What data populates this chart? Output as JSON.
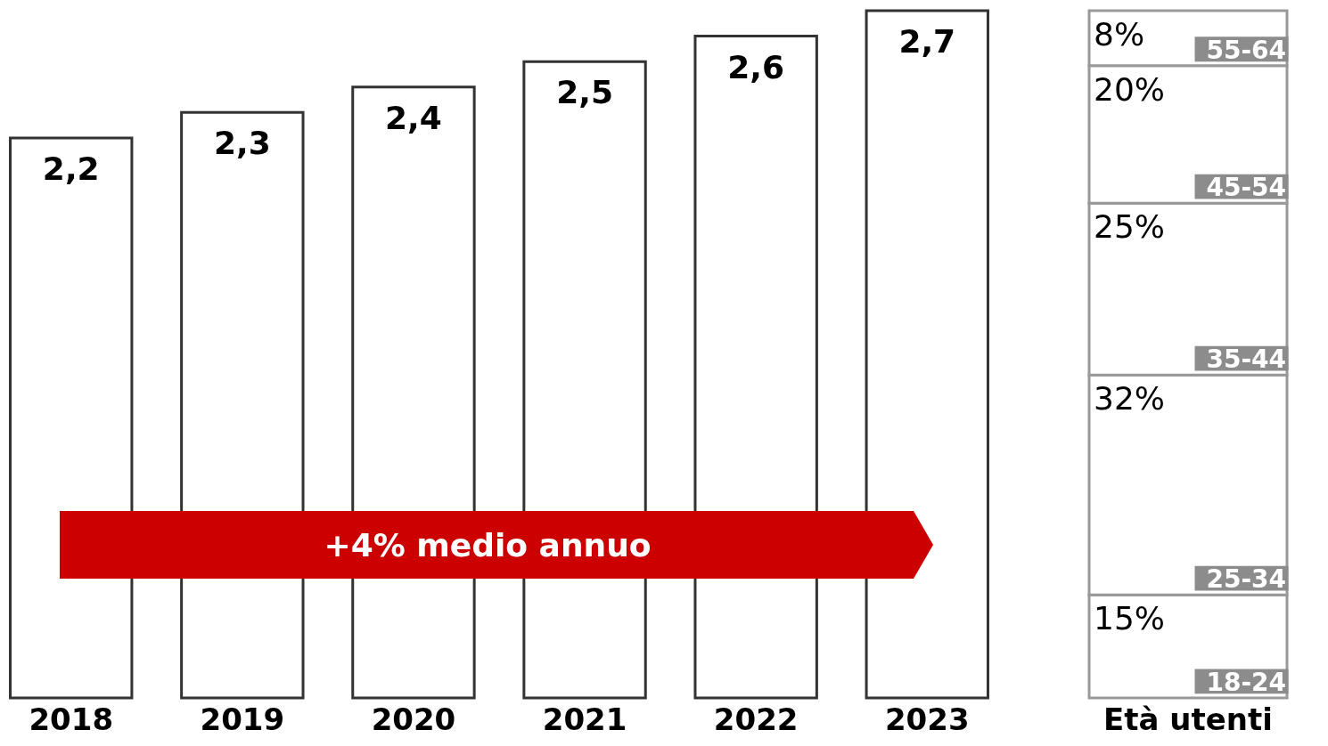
{
  "chart_data": [
    {
      "type": "bar",
      "categories": [
        "2018",
        "2019",
        "2020",
        "2021",
        "2022",
        "2023"
      ],
      "values": [
        2.2,
        2.3,
        2.4,
        2.5,
        2.6,
        2.7
      ],
      "color": "#ffffff",
      "tick_labels": "x",
      "value_labels": [
        "2,2",
        "2,3",
        "2,4",
        "2,5",
        "2,6",
        "2,7"
      ],
      "annotations": [
        "+4% medio annuo"
      ]
    },
    {
      "type": "bar",
      "stacked": true,
      "categories": [
        "Età utenti"
      ],
      "tick_labels": "x",
      "series": [
        {
          "name": "18-24",
          "color": "#ffffff",
          "values": [
            15
          ],
          "value_labels": [
            "15%"
          ]
        },
        {
          "name": "25-34",
          "color": "#ffffff",
          "values": [
            32
          ],
          "value_labels": [
            "32%"
          ]
        },
        {
          "name": "35-44",
          "color": "#ffffff",
          "values": [
            25
          ],
          "value_labels": [
            "25%"
          ]
        },
        {
          "name": "45-54",
          "color": "#ffffff",
          "values": [
            20
          ],
          "value_labels": [
            "20%"
          ]
        },
        {
          "name": "55-64",
          "color": "#ffffff",
          "values": [
            8
          ],
          "value_labels": [
            "8%"
          ]
        }
      ]
    }
  ]
}
